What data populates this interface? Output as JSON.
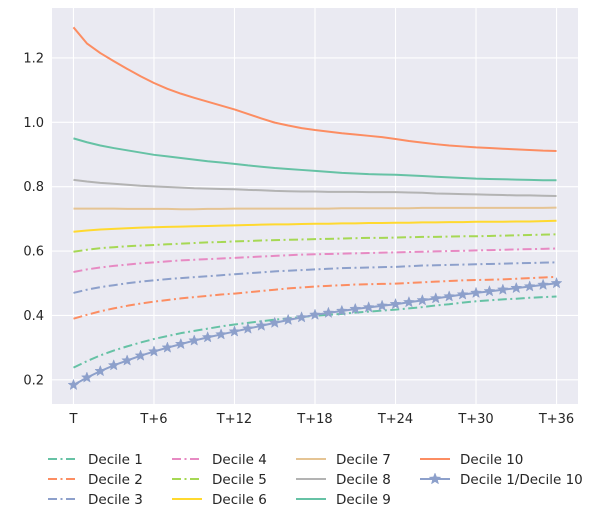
{
  "chart_data": {
    "type": "line",
    "title": "",
    "xlabel": "",
    "ylabel": "",
    "x": [
      0,
      1,
      2,
      3,
      4,
      5,
      6,
      7,
      8,
      9,
      10,
      11,
      12,
      13,
      14,
      15,
      16,
      17,
      18,
      19,
      20,
      21,
      22,
      23,
      24,
      25,
      26,
      27,
      28,
      29,
      30,
      31,
      32,
      33,
      34,
      35,
      36
    ],
    "xticks": [
      {
        "pos": 0,
        "label": "T"
      },
      {
        "pos": 6,
        "label": "T+6"
      },
      {
        "pos": 12,
        "label": "T+12"
      },
      {
        "pos": 18,
        "label": "T+18"
      },
      {
        "pos": 24,
        "label": "T+24"
      },
      {
        "pos": 30,
        "label": "T+30"
      },
      {
        "pos": 36,
        "label": "T+36"
      }
    ],
    "yticks": [
      {
        "pos": 0.2,
        "label": "0.2"
      },
      {
        "pos": 0.4,
        "label": "0.4"
      },
      {
        "pos": 0.6,
        "label": "0.6"
      },
      {
        "pos": 0.8,
        "label": "0.8"
      },
      {
        "pos": 1.0,
        "label": "1.0"
      },
      {
        "pos": 1.2,
        "label": "1.2"
      }
    ],
    "xlim": [
      -1.6,
      37.6
    ],
    "ylim": [
      0.125,
      1.355
    ],
    "grid": true,
    "background": "#eaeaf2",
    "legend_position": "bottom",
    "series": [
      {
        "name": "Decile 1",
        "color": "#66c2a5",
        "style": "dashdot",
        "marker": "none",
        "values": [
          0.238,
          0.258,
          0.276,
          0.291,
          0.304,
          0.316,
          0.327,
          0.336,
          0.345,
          0.352,
          0.359,
          0.366,
          0.372,
          0.377,
          0.382,
          0.387,
          0.391,
          0.395,
          0.399,
          0.402,
          0.405,
          0.409,
          0.412,
          0.415,
          0.418,
          0.422,
          0.426,
          0.431,
          0.435,
          0.44,
          0.444,
          0.447,
          0.45,
          0.452,
          0.455,
          0.457,
          0.459
        ]
      },
      {
        "name": "Decile 2",
        "color": "#fc8d62",
        "style": "dashdot",
        "marker": "none",
        "values": [
          0.39,
          0.402,
          0.413,
          0.422,
          0.43,
          0.437,
          0.443,
          0.448,
          0.453,
          0.457,
          0.461,
          0.465,
          0.468,
          0.472,
          0.476,
          0.48,
          0.484,
          0.487,
          0.49,
          0.492,
          0.494,
          0.496,
          0.497,
          0.498,
          0.499,
          0.501,
          0.503,
          0.505,
          0.507,
          0.509,
          0.51,
          0.511,
          0.512,
          0.514,
          0.516,
          0.518,
          0.52
        ]
      },
      {
        "name": "Decile 3",
        "color": "#8da0cb",
        "style": "dashdot",
        "marker": "none",
        "values": [
          0.47,
          0.48,
          0.488,
          0.494,
          0.5,
          0.505,
          0.509,
          0.513,
          0.516,
          0.519,
          0.522,
          0.525,
          0.528,
          0.531,
          0.534,
          0.537,
          0.539,
          0.541,
          0.543,
          0.545,
          0.547,
          0.548,
          0.549,
          0.55,
          0.551,
          0.553,
          0.555,
          0.556,
          0.557,
          0.558,
          0.559,
          0.56,
          0.561,
          0.562,
          0.563,
          0.564,
          0.565
        ]
      },
      {
        "name": "Decile 4",
        "color": "#e78ac3",
        "style": "dashdot",
        "marker": "none",
        "values": [
          0.535,
          0.543,
          0.549,
          0.554,
          0.558,
          0.562,
          0.565,
          0.568,
          0.571,
          0.573,
          0.575,
          0.577,
          0.579,
          0.581,
          0.583,
          0.585,
          0.587,
          0.589,
          0.59,
          0.591,
          0.592,
          0.593,
          0.594,
          0.595,
          0.596,
          0.597,
          0.598,
          0.599,
          0.6,
          0.601,
          0.602,
          0.603,
          0.604,
          0.605,
          0.606,
          0.607,
          0.608
        ]
      },
      {
        "name": "Decile 5",
        "color": "#a6d854",
        "style": "dashdot",
        "marker": "none",
        "values": [
          0.598,
          0.604,
          0.609,
          0.612,
          0.615,
          0.617,
          0.619,
          0.621,
          0.623,
          0.625,
          0.627,
          0.628,
          0.63,
          0.631,
          0.633,
          0.634,
          0.635,
          0.636,
          0.637,
          0.638,
          0.639,
          0.64,
          0.641,
          0.641,
          0.642,
          0.643,
          0.644,
          0.644,
          0.645,
          0.646,
          0.646,
          0.647,
          0.648,
          0.649,
          0.65,
          0.651,
          0.652
        ]
      },
      {
        "name": "Decile 6",
        "color": "#ffd92f",
        "style": "solid",
        "marker": "none",
        "values": [
          0.66,
          0.664,
          0.667,
          0.669,
          0.671,
          0.673,
          0.674,
          0.675,
          0.676,
          0.677,
          0.678,
          0.679,
          0.68,
          0.681,
          0.682,
          0.683,
          0.683,
          0.684,
          0.685,
          0.685,
          0.686,
          0.686,
          0.687,
          0.687,
          0.688,
          0.688,
          0.689,
          0.689,
          0.69,
          0.69,
          0.691,
          0.691,
          0.691,
          0.692,
          0.692,
          0.693,
          0.694
        ]
      },
      {
        "name": "Decile 7",
        "color": "#e5c494",
        "style": "solid",
        "marker": "none",
        "values": [
          0.732,
          0.732,
          0.732,
          0.732,
          0.731,
          0.731,
          0.731,
          0.731,
          0.73,
          0.73,
          0.731,
          0.731,
          0.732,
          0.732,
          0.732,
          0.732,
          0.732,
          0.732,
          0.732,
          0.732,
          0.733,
          0.733,
          0.733,
          0.733,
          0.733,
          0.733,
          0.734,
          0.734,
          0.734,
          0.734,
          0.734,
          0.734,
          0.734,
          0.734,
          0.734,
          0.734,
          0.735
        ]
      },
      {
        "name": "Decile 8",
        "color": "#b3b3b3",
        "style": "solid",
        "marker": "none",
        "values": [
          0.821,
          0.816,
          0.812,
          0.809,
          0.806,
          0.803,
          0.801,
          0.799,
          0.797,
          0.795,
          0.794,
          0.793,
          0.792,
          0.79,
          0.789,
          0.787,
          0.786,
          0.785,
          0.785,
          0.784,
          0.784,
          0.784,
          0.783,
          0.783,
          0.783,
          0.782,
          0.781,
          0.779,
          0.778,
          0.777,
          0.776,
          0.775,
          0.774,
          0.773,
          0.773,
          0.772,
          0.771
        ]
      },
      {
        "name": "Decile 9",
        "color": "#66c2a5",
        "style": "solid",
        "marker": "none",
        "values": [
          0.95,
          0.938,
          0.928,
          0.92,
          0.913,
          0.906,
          0.899,
          0.894,
          0.889,
          0.884,
          0.879,
          0.875,
          0.871,
          0.866,
          0.862,
          0.858,
          0.855,
          0.852,
          0.849,
          0.846,
          0.843,
          0.841,
          0.839,
          0.838,
          0.837,
          0.835,
          0.833,
          0.831,
          0.829,
          0.827,
          0.825,
          0.824,
          0.823,
          0.822,
          0.821,
          0.82,
          0.82
        ]
      },
      {
        "name": "Decile 10",
        "color": "#fc8d62",
        "style": "solid",
        "marker": "none",
        "values": [
          1.295,
          1.245,
          1.215,
          1.19,
          1.166,
          1.143,
          1.122,
          1.104,
          1.089,
          1.076,
          1.064,
          1.052,
          1.04,
          1.026,
          1.012,
          0.999,
          0.99,
          0.982,
          0.976,
          0.971,
          0.966,
          0.962,
          0.958,
          0.954,
          0.948,
          0.942,
          0.937,
          0.932,
          0.928,
          0.925,
          0.922,
          0.92,
          0.918,
          0.916,
          0.914,
          0.912,
          0.911
        ]
      },
      {
        "name": "Decile 1/Decile 10",
        "color": "#8da0cb",
        "style": "solid",
        "marker": "star",
        "values": [
          0.184,
          0.207,
          0.227,
          0.245,
          0.26,
          0.275,
          0.288,
          0.3,
          0.311,
          0.322,
          0.332,
          0.341,
          0.35,
          0.359,
          0.368,
          0.377,
          0.386,
          0.394,
          0.402,
          0.408,
          0.414,
          0.42,
          0.425,
          0.43,
          0.435,
          0.441,
          0.447,
          0.453,
          0.459,
          0.465,
          0.47,
          0.475,
          0.48,
          0.485,
          0.49,
          0.495,
          0.5
        ]
      }
    ]
  }
}
